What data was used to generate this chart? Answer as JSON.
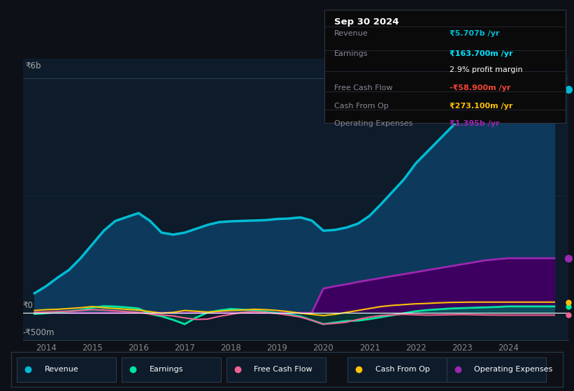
{
  "background_color": "#0d1117",
  "plot_bg_color": "#0d1b2a",
  "title": "Sep 30 2024",
  "tooltip": {
    "Revenue": {
      "value": "₹5.707b /yr",
      "color": "#00bcd4"
    },
    "Earnings": {
      "value": "₹163.700m /yr",
      "color": "#00e5ff"
    },
    "profit_margin": "2.9% profit margin",
    "Free Cash Flow": {
      "value": "-₹58.900m /yr",
      "color": "#f44336"
    },
    "Cash From Op": {
      "value": "₹273.100m /yr",
      "color": "#ffc107"
    },
    "Operating Expenses": {
      "value": "₹1.395b /yr",
      "color": "#9c27b0"
    }
  },
  "ylabel_top": "₹6b",
  "ylabel_zero": "₹0",
  "ylabel_neg": "-₹500m",
  "xlim": [
    2013.5,
    2025.3
  ],
  "ylim": [
    -700000000,
    6500000000
  ],
  "xticks": [
    2014,
    2015,
    2016,
    2017,
    2018,
    2019,
    2020,
    2021,
    2022,
    2023,
    2024
  ],
  "legend": [
    {
      "label": "Revenue",
      "color": "#00bcd4"
    },
    {
      "label": "Earnings",
      "color": "#00e5a0"
    },
    {
      "label": "Free Cash Flow",
      "color": "#f06292"
    },
    {
      "label": "Cash From Op",
      "color": "#ffc107"
    },
    {
      "label": "Operating Expenses",
      "color": "#9c27b0"
    }
  ],
  "revenue": {
    "x": [
      2013.75,
      2014.0,
      2014.25,
      2014.5,
      2014.75,
      2015.0,
      2015.25,
      2015.5,
      2015.75,
      2016.0,
      2016.25,
      2016.5,
      2016.75,
      2017.0,
      2017.25,
      2017.5,
      2017.75,
      2018.0,
      2018.25,
      2018.5,
      2018.75,
      2019.0,
      2019.25,
      2019.5,
      2019.75,
      2020.0,
      2020.25,
      2020.5,
      2020.75,
      2021.0,
      2021.25,
      2021.5,
      2021.75,
      2022.0,
      2022.25,
      2022.5,
      2022.75,
      2023.0,
      2023.25,
      2023.5,
      2023.75,
      2024.0,
      2024.25,
      2024.5,
      2024.75,
      2025.0
    ],
    "y": [
      500000000,
      680000000,
      900000000,
      1100000000,
      1400000000,
      1750000000,
      2100000000,
      2350000000,
      2450000000,
      2550000000,
      2350000000,
      2050000000,
      2000000000,
      2050000000,
      2150000000,
      2250000000,
      2320000000,
      2340000000,
      2350000000,
      2360000000,
      2370000000,
      2400000000,
      2410000000,
      2440000000,
      2360000000,
      2100000000,
      2120000000,
      2180000000,
      2280000000,
      2480000000,
      2780000000,
      3100000000,
      3420000000,
      3820000000,
      4120000000,
      4420000000,
      4720000000,
      5020000000,
      5220000000,
      5370000000,
      5520000000,
      5620000000,
      5670000000,
      5707000000,
      5707000000,
      5707000000
    ],
    "color": "#00bcd4",
    "fill_color": "#0d3a5c",
    "linewidth": 2.5
  },
  "earnings": {
    "x": [
      2013.75,
      2014.0,
      2014.25,
      2014.5,
      2014.75,
      2015.0,
      2015.25,
      2015.5,
      2015.75,
      2016.0,
      2016.25,
      2016.5,
      2016.75,
      2017.0,
      2017.25,
      2017.5,
      2017.75,
      2018.0,
      2018.25,
      2018.5,
      2018.75,
      2019.0,
      2019.25,
      2019.5,
      2019.75,
      2020.0,
      2020.25,
      2020.5,
      2020.75,
      2021.0,
      2021.25,
      2021.5,
      2021.75,
      2022.0,
      2022.25,
      2022.5,
      2022.75,
      2023.0,
      2023.25,
      2023.5,
      2023.75,
      2024.0,
      2024.25,
      2024.5,
      2024.75,
      2025.0
    ],
    "y": [
      -30000000,
      -10000000,
      20000000,
      40000000,
      70000000,
      130000000,
      170000000,
      160000000,
      140000000,
      110000000,
      -30000000,
      -90000000,
      -180000000,
      -290000000,
      -120000000,
      10000000,
      60000000,
      100000000,
      80000000,
      60000000,
      30000000,
      -10000000,
      -40000000,
      -90000000,
      -190000000,
      -290000000,
      -250000000,
      -210000000,
      -200000000,
      -160000000,
      -110000000,
      -60000000,
      -10000000,
      40000000,
      70000000,
      90000000,
      110000000,
      120000000,
      130000000,
      140000000,
      150000000,
      163700000,
      163700000,
      163700000,
      163700000,
      163700000
    ],
    "color": "#00e5a0",
    "linewidth": 2.0
  },
  "free_cash_flow": {
    "x": [
      2013.75,
      2014.0,
      2014.25,
      2014.5,
      2014.75,
      2015.0,
      2015.25,
      2015.5,
      2015.75,
      2016.0,
      2016.25,
      2016.5,
      2016.75,
      2017.0,
      2017.25,
      2017.5,
      2017.75,
      2018.0,
      2018.25,
      2018.5,
      2018.75,
      2019.0,
      2019.25,
      2019.5,
      2019.75,
      2020.0,
      2020.25,
      2020.5,
      2020.75,
      2021.0,
      2021.25,
      2021.5,
      2021.75,
      2022.0,
      2022.25,
      2022.5,
      2022.75,
      2023.0,
      2023.25,
      2023.5,
      2023.75,
      2024.0,
      2024.25,
      2024.5,
      2024.75,
      2025.0
    ],
    "y": [
      10000000,
      20000000,
      30000000,
      40000000,
      60000000,
      80000000,
      70000000,
      50000000,
      30000000,
      10000000,
      -30000000,
      -60000000,
      -80000000,
      -130000000,
      -170000000,
      -160000000,
      -90000000,
      -40000000,
      10000000,
      30000000,
      10000000,
      -20000000,
      -60000000,
      -110000000,
      -190000000,
      -290000000,
      -270000000,
      -240000000,
      -170000000,
      -110000000,
      -70000000,
      -50000000,
      -40000000,
      -50000000,
      -60000000,
      -55000000,
      -50000000,
      -45000000,
      -50000000,
      -55000000,
      -58000000,
      -58900000,
      -58900000,
      -58900000,
      -58900000,
      -58900000
    ],
    "color": "#f06292",
    "linewidth": 1.5
  },
  "cash_from_op": {
    "x": [
      2013.75,
      2014.0,
      2014.25,
      2014.5,
      2014.75,
      2015.0,
      2015.25,
      2015.5,
      2015.75,
      2016.0,
      2016.25,
      2016.5,
      2016.75,
      2017.0,
      2017.25,
      2017.5,
      2017.75,
      2018.0,
      2018.25,
      2018.5,
      2018.75,
      2019.0,
      2019.25,
      2019.5,
      2019.75,
      2020.0,
      2020.25,
      2020.5,
      2020.75,
      2021.0,
      2021.25,
      2021.5,
      2021.75,
      2022.0,
      2022.25,
      2022.5,
      2022.75,
      2023.0,
      2023.25,
      2023.5,
      2023.75,
      2024.0,
      2024.25,
      2024.5,
      2024.75,
      2025.0
    ],
    "y": [
      60000000,
      80000000,
      90000000,
      110000000,
      130000000,
      160000000,
      130000000,
      110000000,
      90000000,
      70000000,
      30000000,
      -10000000,
      10000000,
      60000000,
      40000000,
      20000000,
      40000000,
      60000000,
      70000000,
      90000000,
      80000000,
      60000000,
      30000000,
      -10000000,
      -40000000,
      -70000000,
      -40000000,
      10000000,
      60000000,
      110000000,
      160000000,
      190000000,
      210000000,
      230000000,
      240000000,
      255000000,
      265000000,
      270000000,
      273100000,
      273100000,
      273100000,
      273100000,
      273100000,
      273100000,
      273100000,
      273100000
    ],
    "color": "#ffc107",
    "linewidth": 1.5
  },
  "operating_expenses": {
    "x": [
      2013.75,
      2014.0,
      2014.25,
      2014.5,
      2014.75,
      2015.0,
      2015.25,
      2015.5,
      2015.75,
      2016.0,
      2016.25,
      2016.5,
      2016.75,
      2017.0,
      2017.25,
      2017.5,
      2017.75,
      2018.0,
      2018.25,
      2018.5,
      2018.75,
      2019.0,
      2019.25,
      2019.5,
      2019.75,
      2020.0,
      2020.25,
      2020.5,
      2020.75,
      2021.0,
      2021.25,
      2021.5,
      2021.75,
      2022.0,
      2022.25,
      2022.5,
      2022.75,
      2023.0,
      2023.25,
      2023.5,
      2023.75,
      2024.0,
      2024.25,
      2024.5,
      2024.75,
      2025.0
    ],
    "y": [
      0,
      0,
      0,
      0,
      0,
      0,
      0,
      0,
      0,
      0,
      0,
      0,
      0,
      0,
      0,
      0,
      0,
      0,
      0,
      0,
      0,
      0,
      0,
      0,
      0,
      620000000,
      680000000,
      730000000,
      790000000,
      840000000,
      890000000,
      940000000,
      990000000,
      1040000000,
      1090000000,
      1140000000,
      1190000000,
      1240000000,
      1290000000,
      1340000000,
      1370000000,
      1395000000,
      1395000000,
      1395000000,
      1395000000,
      1395000000
    ],
    "color": "#9c27b0",
    "fill_color": "#3d0060",
    "linewidth": 2.0
  }
}
